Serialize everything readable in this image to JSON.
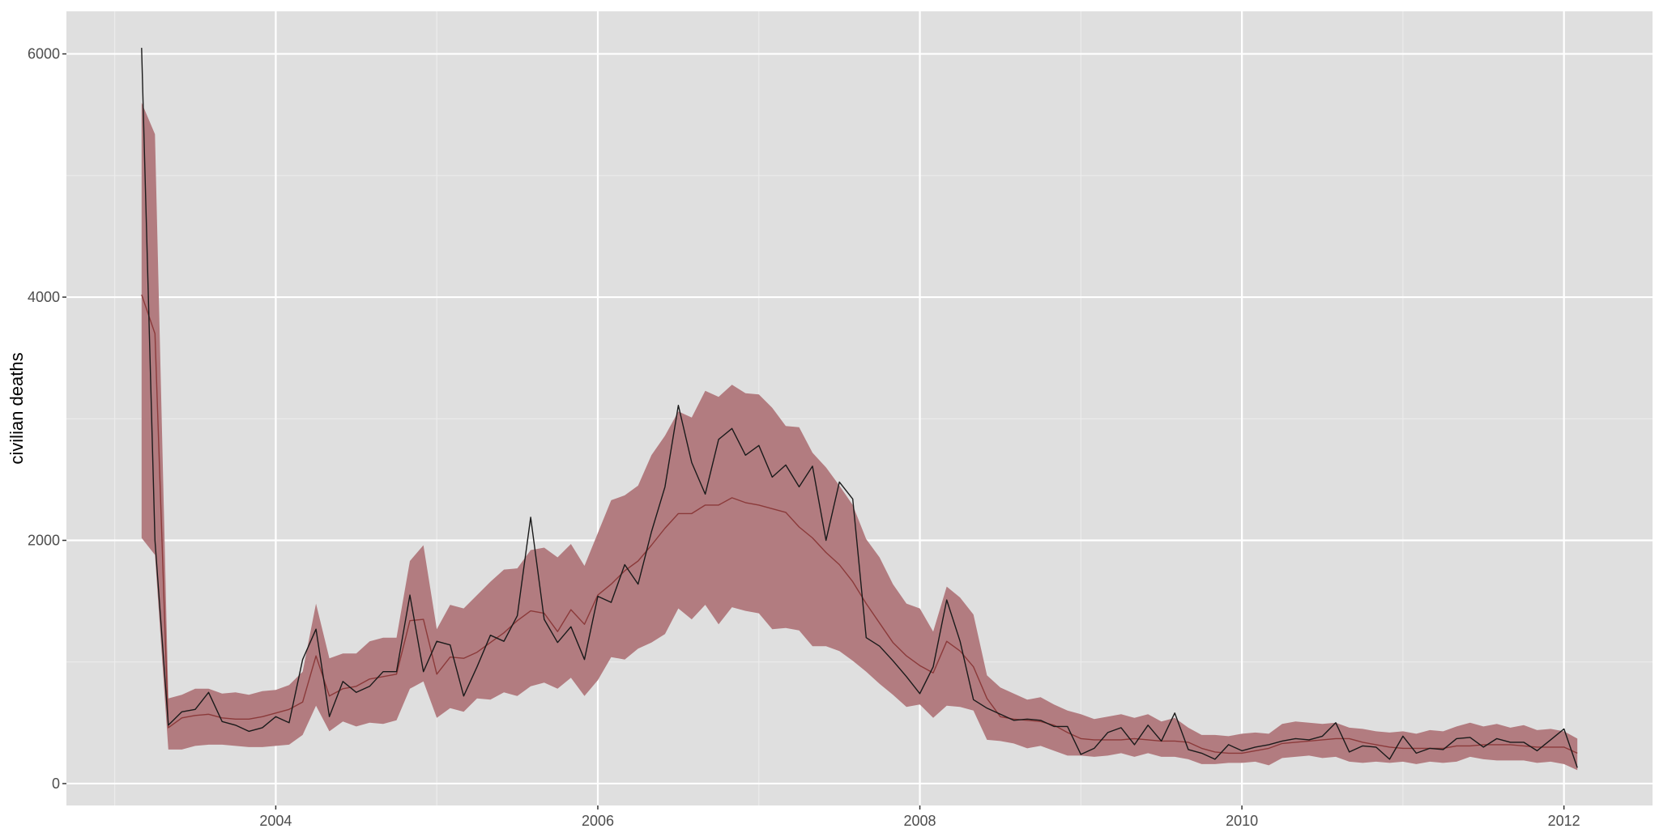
{
  "chart_data": {
    "type": "line",
    "title": "",
    "xlabel": "",
    "ylabel": "civilian deaths",
    "x_tick_labels": [
      "2004",
      "2006",
      "2008",
      "2010",
      "2012"
    ],
    "y_tick_labels": [
      "0",
      "2000",
      "4000",
      "6000"
    ],
    "x_ticks": [
      2004,
      2006,
      2008,
      2010,
      2012
    ],
    "y_ticks": [
      0,
      2000,
      4000,
      6000
    ],
    "xlim": [
      2002.7,
      2012.55
    ],
    "ylim": [
      -180,
      6350
    ],
    "grid": true,
    "legend": "none",
    "colors": {
      "panel_background": "#dfdfdf",
      "grid_major": "#ffffff",
      "grid_minor": "#ececec",
      "band_fill": "#b27c80",
      "observed_line": "#1a1a1a",
      "fitted_line": "#8b3a3a"
    },
    "x": [
      2003.167,
      2003.25,
      2003.333,
      2003.417,
      2003.5,
      2003.583,
      2003.667,
      2003.75,
      2003.833,
      2003.917,
      2004.0,
      2004.083,
      2004.167,
      2004.25,
      2004.333,
      2004.417,
      2004.5,
      2004.583,
      2004.667,
      2004.75,
      2004.833,
      2004.917,
      2005.0,
      2005.083,
      2005.167,
      2005.25,
      2005.333,
      2005.417,
      2005.5,
      2005.583,
      2005.667,
      2005.75,
      2005.833,
      2005.917,
      2006.0,
      2006.083,
      2006.167,
      2006.25,
      2006.333,
      2006.417,
      2006.5,
      2006.583,
      2006.667,
      2006.75,
      2006.833,
      2006.917,
      2007.0,
      2007.083,
      2007.167,
      2007.25,
      2007.333,
      2007.417,
      2007.5,
      2007.583,
      2007.667,
      2007.75,
      2007.833,
      2007.917,
      2008.0,
      2008.083,
      2008.167,
      2008.25,
      2008.333,
      2008.417,
      2008.5,
      2008.583,
      2008.667,
      2008.75,
      2008.833,
      2008.917,
      2009.0,
      2009.083,
      2009.167,
      2009.25,
      2009.333,
      2009.417,
      2009.5,
      2009.583,
      2009.667,
      2009.75,
      2009.833,
      2009.917,
      2010.0,
      2010.083,
      2010.167,
      2010.25,
      2010.333,
      2010.417,
      2010.5,
      2010.583,
      2010.667,
      2010.75,
      2010.833,
      2010.917,
      2011.0,
      2011.083,
      2011.167,
      2011.25,
      2011.333,
      2011.417,
      2011.5,
      2011.583,
      2011.667,
      2011.75,
      2011.833,
      2011.917,
      2012.0,
      2012.083
    ],
    "series": [
      {
        "role": "observed",
        "values": [
          6050,
          2000,
          480,
          590,
          610,
          750,
          510,
          480,
          430,
          460,
          550,
          500,
          1020,
          1270,
          550,
          840,
          750,
          800,
          920,
          920,
          1550,
          920,
          1170,
          1140,
          720,
          960,
          1220,
          1170,
          1380,
          2190,
          1350,
          1160,
          1290,
          1020,
          1540,
          1490,
          1800,
          1640,
          2070,
          2440,
          3110,
          2640,
          2380,
          2830,
          2920,
          2700,
          2780,
          2520,
          2620,
          2440,
          2610,
          2000,
          2480,
          2340,
          1200,
          1130,
          1010,
          880,
          740,
          960,
          1510,
          1170,
          690,
          620,
          570,
          520,
          530,
          520,
          470,
          470,
          240,
          290,
          420,
          460,
          320,
          480,
          350,
          580,
          280,
          250,
          200,
          320,
          270,
          300,
          320,
          350,
          370,
          360,
          390,
          500,
          260,
          310,
          300,
          200,
          390,
          250,
          290,
          280,
          370,
          380,
          300,
          370,
          340,
          340,
          270,
          360,
          450,
          130
        ]
      },
      {
        "role": "fitted",
        "values": [
          4020,
          3700,
          460,
          540,
          560,
          570,
          540,
          530,
          530,
          550,
          580,
          610,
          670,
          1050,
          720,
          780,
          800,
          860,
          880,
          900,
          1340,
          1350,
          900,
          1040,
          1030,
          1080,
          1160,
          1240,
          1340,
          1420,
          1400,
          1250,
          1430,
          1310,
          1550,
          1640,
          1750,
          1830,
          1960,
          2100,
          2220,
          2220,
          2290,
          2290,
          2350,
          2310,
          2290,
          2260,
          2230,
          2110,
          2020,
          1900,
          1800,
          1660,
          1480,
          1320,
          1160,
          1050,
          970,
          910,
          1170,
          1090,
          960,
          700,
          550,
          530,
          520,
          510,
          480,
          420,
          370,
          360,
          360,
          360,
          370,
          360,
          350,
          350,
          340,
          290,
          260,
          250,
          250,
          270,
          290,
          330,
          340,
          350,
          360,
          370,
          370,
          340,
          320,
          300,
          290,
          290,
          290,
          290,
          310,
          310,
          320,
          320,
          320,
          310,
          300,
          300,
          300,
          250
        ]
      }
    ],
    "band": {
      "role": "interval",
      "upper": [
        5600,
        5340,
        700,
        730,
        780,
        780,
        740,
        750,
        730,
        760,
        770,
        810,
        920,
        1480,
        1030,
        1070,
        1070,
        1170,
        1200,
        1200,
        1830,
        1960,
        1270,
        1470,
        1440,
        1550,
        1660,
        1760,
        1770,
        1920,
        1940,
        1860,
        1970,
        1790,
        2060,
        2330,
        2370,
        2450,
        2700,
        2860,
        3060,
        3010,
        3230,
        3180,
        3280,
        3210,
        3200,
        3090,
        2940,
        2930,
        2720,
        2600,
        2450,
        2290,
        2010,
        1860,
        1640,
        1480,
        1440,
        1250,
        1620,
        1530,
        1390,
        890,
        790,
        740,
        690,
        710,
        650,
        600,
        570,
        530,
        550,
        570,
        540,
        570,
        510,
        540,
        460,
        400,
        400,
        390,
        410,
        420,
        410,
        490,
        510,
        500,
        490,
        500,
        460,
        450,
        430,
        420,
        430,
        410,
        440,
        430,
        470,
        500,
        470,
        490,
        460,
        480,
        440,
        450,
        430,
        370
      ],
      "lower": [
        2020,
        1880,
        280,
        280,
        310,
        320,
        320,
        310,
        300,
        300,
        310,
        320,
        400,
        640,
        430,
        510,
        470,
        500,
        490,
        520,
        780,
        840,
        540,
        620,
        590,
        700,
        690,
        750,
        720,
        800,
        830,
        780,
        870,
        720,
        850,
        1040,
        1020,
        1110,
        1160,
        1230,
        1440,
        1350,
        1470,
        1310,
        1450,
        1420,
        1400,
        1270,
        1280,
        1260,
        1130,
        1130,
        1090,
        1010,
        920,
        820,
        730,
        630,
        650,
        540,
        640,
        630,
        600,
        360,
        350,
        330,
        290,
        310,
        270,
        230,
        230,
        220,
        230,
        250,
        220,
        250,
        220,
        220,
        200,
        160,
        160,
        170,
        170,
        180,
        150,
        210,
        220,
        230,
        210,
        220,
        180,
        170,
        180,
        170,
        180,
        160,
        180,
        170,
        180,
        220,
        200,
        190,
        190,
        190,
        170,
        180,
        160,
        110
      ]
    }
  }
}
